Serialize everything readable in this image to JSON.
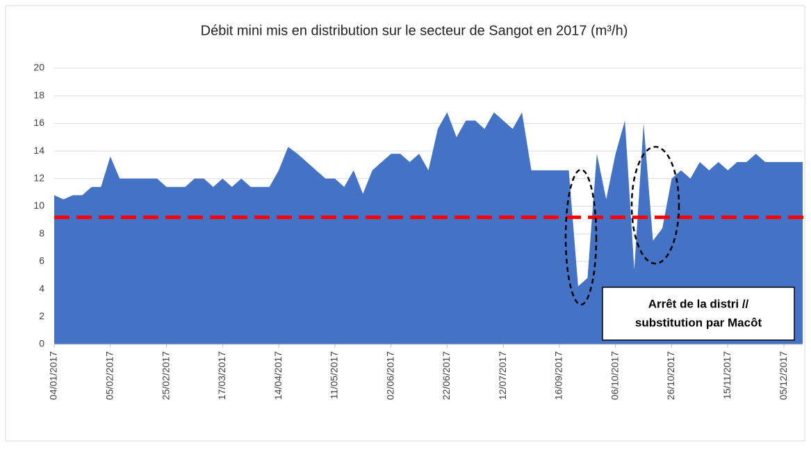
{
  "chart_data": {
    "type": "area",
    "title": "Débit mini mis en distribution sur le secteur de Sangot en 2017 (m³/h)",
    "categories": [
      "04/01/2017",
      null,
      null,
      null,
      null,
      null,
      "05/02/2017",
      null,
      null,
      null,
      null,
      null,
      "25/02/2017",
      null,
      null,
      null,
      null,
      null,
      "17/03/2017",
      null,
      null,
      null,
      null,
      null,
      "14/04/2017",
      null,
      null,
      null,
      null,
      null,
      "11/05/2017",
      null,
      null,
      null,
      null,
      null,
      "02/06/2017",
      null,
      null,
      null,
      null,
      null,
      "22/06/2017",
      null,
      null,
      null,
      null,
      null,
      "12/07/2017",
      null,
      null,
      null,
      null,
      null,
      "16/09/2017",
      null,
      null,
      null,
      null,
      null,
      "06/10/2017",
      null,
      null,
      null,
      null,
      null,
      "26/10/2017",
      null,
      null,
      null,
      null,
      null,
      "15/11/2017",
      null,
      null,
      null,
      null,
      null,
      "05/12/2017",
      null,
      null
    ],
    "values": [
      10.8,
      10.5,
      10.8,
      10.8,
      11.4,
      11.4,
      13.6,
      12,
      12,
      12,
      12,
      12,
      11.4,
      11.4,
      11.4,
      12,
      12,
      11.4,
      12,
      11.4,
      12,
      11.4,
      11.4,
      11.4,
      12.6,
      14.3,
      13.8,
      13.2,
      12.6,
      12,
      12,
      11.4,
      12.6,
      10.9,
      12.6,
      13.2,
      13.8,
      13.8,
      13.2,
      13.8,
      12.6,
      15.6,
      16.8,
      15,
      16.2,
      16.2,
      15.6,
      16.8,
      16.2,
      15.6,
      16.8,
      12.6,
      12.6,
      12.6,
      12.6,
      12.6,
      4.2,
      4.8,
      13.8,
      10.5,
      13.8,
      16.2,
      5.4,
      16,
      7.5,
      8.4,
      12,
      12.6,
      12,
      13.2,
      12.6,
      13.2,
      12.6,
      13.2,
      13.2,
      13.8,
      13.2,
      13.2,
      13.2,
      13.2,
      13.2
    ],
    "color": "#4472c4",
    "ylim": [
      0,
      20
    ],
    "yticks": [
      0,
      2,
      4,
      6,
      8,
      10,
      12,
      14,
      16,
      18,
      20
    ],
    "grid": true,
    "threshold": 9.2,
    "threshold_color": "#ff0000",
    "annotation": [
      "Arrêt de la distri //",
      "substitution par Macôt"
    ]
  }
}
